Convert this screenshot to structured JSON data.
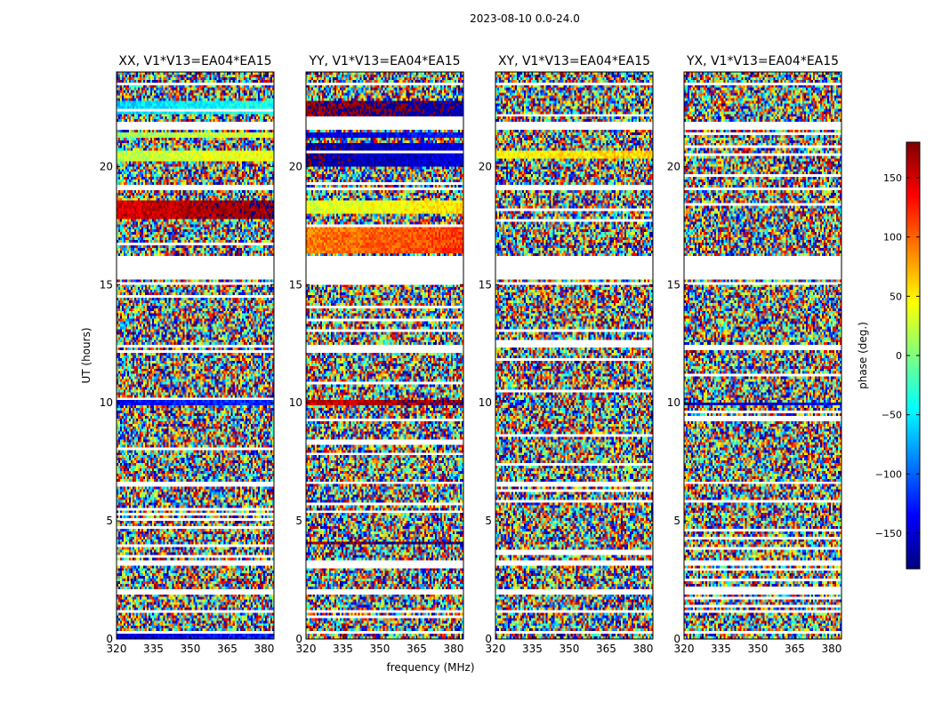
{
  "chart_data": {
    "type": "heatmap",
    "suptitle": "2023-08-10 0.0-24.0",
    "xlabel": "frequency (MHz)",
    "ylabel": "UT (hours)",
    "xlim": [
      320,
      384
    ],
    "ylim": [
      0,
      24
    ],
    "xticks": [
      320,
      335,
      350,
      365,
      380
    ],
    "yticks": [
      0,
      5,
      10,
      15,
      20
    ],
    "colorbar": {
      "label": "phase (deg.)",
      "range": [
        -180,
        180
      ],
      "ticks": [
        150,
        100,
        50,
        0,
        -50,
        -100,
        -150
      ],
      "colormap": "jet",
      "colormap_stops": [
        "#00007f",
        "#0000ff",
        "#007fff",
        "#00ffff",
        "#7fff7f",
        "#ffff00",
        "#ff7f00",
        "#ff0000",
        "#7f0000"
      ]
    },
    "panels": [
      {
        "title": "XX, V1*V13=EA04*EA15",
        "coherent_bands": [
          {
            "t0": 0.0,
            "t1": 0.2,
            "phase": -150
          },
          {
            "t0": 9.9,
            "t1": 10.1,
            "phase": -140
          },
          {
            "t0": 17.8,
            "t1": 18.6,
            "phase": 150
          },
          {
            "t0": 20.2,
            "t1": 20.7,
            "phase": 20
          },
          {
            "t0": 21.2,
            "t1": 21.4,
            "phase": 10
          },
          {
            "t0": 22.2,
            "t1": 22.8,
            "phase": -60
          }
        ]
      },
      {
        "title": "YY, V1*V13=EA04*EA15",
        "coherent_bands": [
          {
            "t0": 4.0,
            "t1": 4.1,
            "phase": 170
          },
          {
            "t0": 9.9,
            "t1": 10.1,
            "phase": 150
          },
          {
            "t0": 16.3,
            "t1": 17.4,
            "phase": 90
          },
          {
            "t0": 18.0,
            "t1": 18.6,
            "phase": 30
          },
          {
            "t0": 20.0,
            "t1": 21.0,
            "phase": -170
          },
          {
            "t0": 21.2,
            "t1": 21.4,
            "phase": -150
          },
          {
            "t0": 22.0,
            "t1": 22.8,
            "phase": 170
          }
        ]
      },
      {
        "title": "XY, V1*V13=EA04*EA15",
        "coherent_bands": [
          {
            "t0": 20.3,
            "t1": 20.7,
            "phase": 40
          }
        ]
      },
      {
        "title": "YX, V1*V13=EA04*EA15",
        "coherent_bands": [
          {
            "t0": 9.9,
            "t1": 10.0,
            "phase": -160
          }
        ]
      }
    ],
    "flagged_time_ranges": [
      [
        0.2,
        0.3
      ],
      [
        1.1,
        1.2
      ],
      [
        1.9,
        2.1
      ],
      [
        3.1,
        3.3
      ],
      [
        6.6,
        6.7
      ],
      [
        12.3,
        12.4
      ],
      [
        15.0,
        15.1
      ],
      [
        15.2,
        16.2
      ],
      [
        19.0,
        19.1
      ],
      [
        21.6,
        21.9
      ],
      [
        23.4,
        23.5
      ]
    ]
  }
}
